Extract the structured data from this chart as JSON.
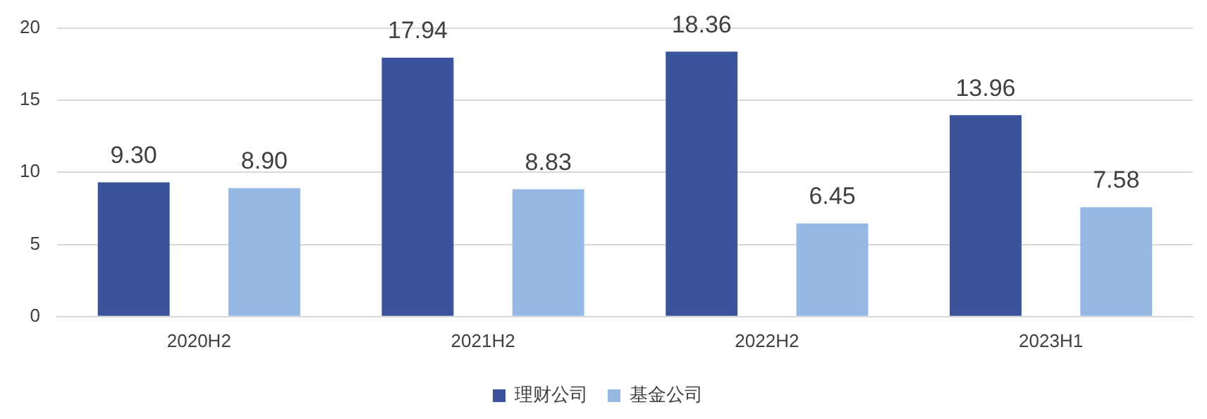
{
  "chart_data": {
    "type": "bar",
    "categories": [
      "2020H2",
      "2021H2",
      "2022H2",
      "2023H1"
    ],
    "series": [
      {
        "name": "理财公司",
        "color": "#3a539b",
        "values": [
          9.3,
          17.94,
          18.36,
          13.96
        ],
        "value_labels": [
          "9.30",
          "17.94",
          "18.36",
          "13.96"
        ]
      },
      {
        "name": "基金公司",
        "color": "#95b9e4",
        "values": [
          8.9,
          8.83,
          6.45,
          7.58
        ],
        "value_labels": [
          "8.90",
          "8.83",
          "6.45",
          "7.58"
        ]
      }
    ],
    "ylim": [
      0,
      20
    ],
    "yticks": [
      0,
      5,
      10,
      15,
      20
    ],
    "grid": "y",
    "legend": "bottom"
  }
}
